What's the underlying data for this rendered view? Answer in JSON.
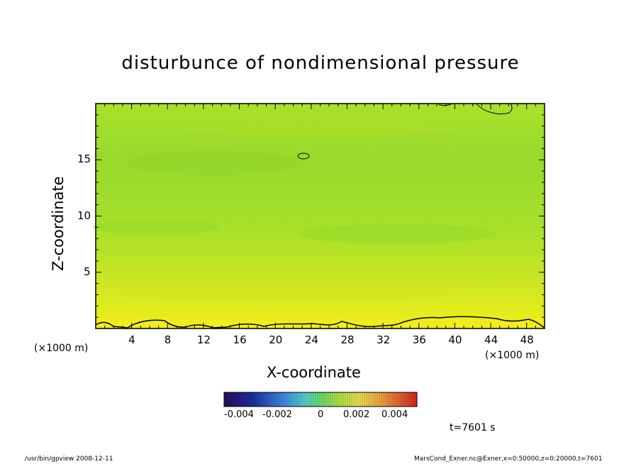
{
  "title": "disturbunce of nondimensional pressure",
  "footer": {
    "left": "/usr/bin/gpview   2008-12-11",
    "right": "MarsCond_Exner.nc@Exner,x=0:50000,z=0:20000,t=7601"
  },
  "time_label": "t=7601 s",
  "colorbar": {
    "tick_labels": [
      "-0.004",
      "-0.002",
      "0",
      "0.002",
      "0.004"
    ],
    "colors": [
      "#3b1a7a",
      "#2233aa",
      "#3d6fd6",
      "#52b0e8",
      "#5cd6a8",
      "#6fe05a",
      "#a9e04a",
      "#e6e04a",
      "#f0a040",
      "#e85a30",
      "#d02a20"
    ]
  },
  "chart_data": {
    "type": "heatmap",
    "title": "disturbunce of nondimensional pressure",
    "xlabel": "X-coordinate",
    "ylabel": "Z-coordinate",
    "x_unit": "(×1000 m)",
    "z_unit": "(×1000 m)",
    "xlim": [
      0,
      50
    ],
    "ylim": [
      0,
      20
    ],
    "x_ticks": [
      4,
      8,
      12,
      16,
      20,
      24,
      28,
      32,
      36,
      40,
      44,
      48
    ],
    "y_ticks": [
      5,
      10,
      15
    ],
    "colorbar_range": [
      -0.004,
      0.004
    ],
    "colorbar_ticks": [
      -0.004,
      -0.002,
      0,
      0.002,
      0.004
    ],
    "field_description_values": {
      "surface": 0.0025,
      "upper": 0.0012
    },
    "time": "t=7601 s"
  }
}
